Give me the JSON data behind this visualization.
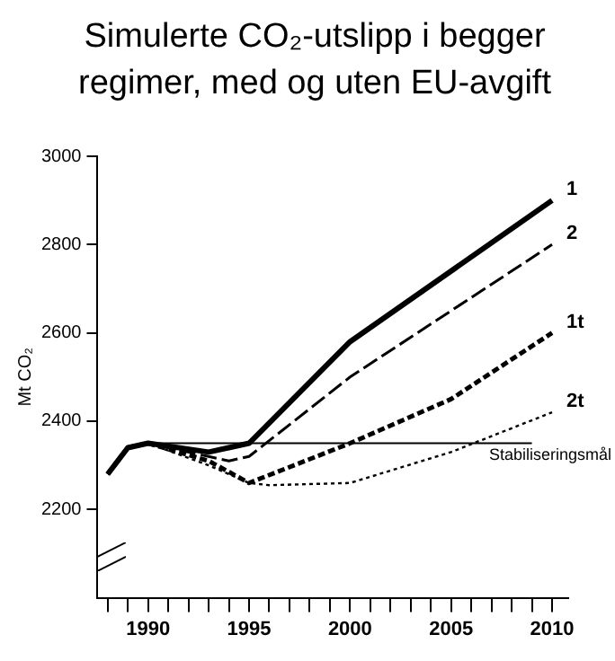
{
  "chart_data": {
    "type": "line",
    "title": "Simulerte CO₂-utslipp i begger regimer, med og uten EU-avgift",
    "ylabel": "Mt CO₂",
    "series": [
      {
        "name": "1",
        "color": "#000000",
        "line_style": "solid",
        "x": [
          1988,
          1989,
          1990,
          1993,
          1995,
          2000,
          2010
        ],
        "values": [
          2280,
          2340,
          2350,
          2330,
          2350,
          2580,
          2900
        ]
      },
      {
        "name": "2",
        "color": "#000000",
        "line_style": "dashed",
        "x": [
          1988,
          1989,
          1990,
          1993,
          1994,
          1995,
          2000,
          2010
        ],
        "values": [
          2280,
          2340,
          2350,
          2320,
          2310,
          2320,
          2500,
          2800
        ]
      },
      {
        "name": "1t",
        "color": "#000000",
        "line_style": "shortdash",
        "x": [
          1988,
          1989,
          1990,
          1993,
          1995,
          2000,
          2005,
          2010
        ],
        "values": [
          2280,
          2340,
          2350,
          2310,
          2260,
          2350,
          2450,
          2600
        ]
      },
      {
        "name": "2t",
        "color": "#000000",
        "line_style": "dotted",
        "x": [
          1988,
          1989,
          1990,
          1993,
          1995,
          1996,
          2000,
          2005,
          2010
        ],
        "values": [
          2280,
          2340,
          2350,
          2300,
          2260,
          2255,
          2260,
          2330,
          2420
        ]
      }
    ],
    "ref_lines": [
      {
        "axis": "y",
        "value": 2350,
        "label": "Stabiliseringsmål",
        "color": "#000000"
      }
    ],
    "xlim": [
      1987.5,
      2010.8
    ],
    "xticks": [
      {
        "value": 1988,
        "label": null
      },
      {
        "value": 1989,
        "label": null
      },
      1990,
      {
        "value": 1991,
        "label": null
      },
      {
        "value": 1992,
        "label": null
      },
      {
        "value": 1993,
        "label": null
      },
      {
        "value": 1994,
        "label": null
      },
      1995,
      {
        "value": 1996,
        "label": null
      },
      {
        "value": 1997,
        "label": null
      },
      {
        "value": 1998,
        "label": null
      },
      {
        "value": 1999,
        "label": null
      },
      2000,
      {
        "value": 2001,
        "label": null
      },
      {
        "value": 2002,
        "label": null
      },
      {
        "value": 2003,
        "label": null
      },
      {
        "value": 2004,
        "label": null
      },
      2005,
      {
        "value": 2006,
        "label": null
      },
      {
        "value": 2007,
        "label": null
      },
      {
        "value": 2008,
        "label": null
      },
      {
        "value": 2009,
        "label": null
      },
      2010
    ],
    "ylim": [
      2000,
      3000
    ],
    "yticks": [
      2200,
      2400,
      2600,
      2800,
      3000
    ],
    "grid": false,
    "legend": false,
    "marker": "none"
  }
}
